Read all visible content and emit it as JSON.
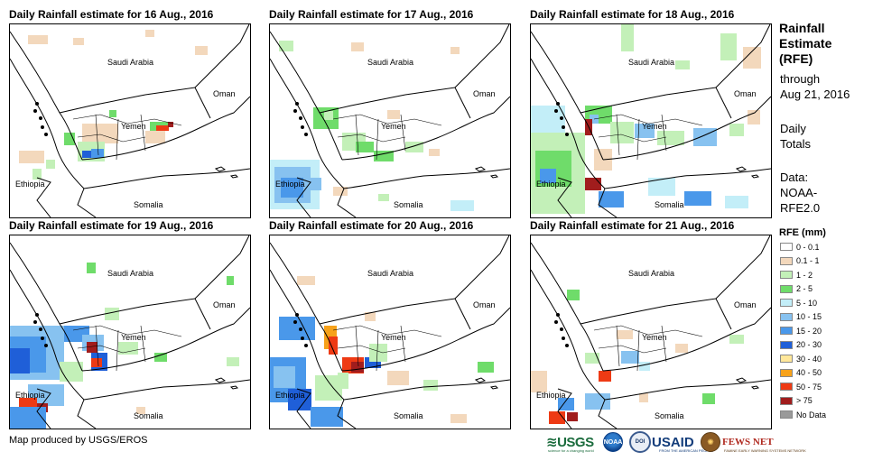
{
  "panels": [
    {
      "title": "Daily Rainfall estimate for 16 Aug., 2016"
    },
    {
      "title": "Daily Rainfall estimate for 17 Aug., 2016"
    },
    {
      "title": "Daily Rainfall estimate for 18 Aug., 2016"
    },
    {
      "title": "Daily Rainfall estimate for 19 Aug., 2016"
    },
    {
      "title": "Daily Rainfall estimate for 20 Aug., 2016"
    },
    {
      "title": "Daily Rainfall estimate for 21 Aug., 2016"
    }
  ],
  "country_labels": {
    "saudi_arabia": "Saudi Arabia",
    "oman": "Oman",
    "yemen": "Yemen",
    "ethiopia": "Ethiopia",
    "somalia": "Somalia"
  },
  "legend": {
    "title_line1": "Rainfall",
    "title_line2": "Estimate",
    "title_line3": "(RFE)",
    "through": "through",
    "date": "Aug 21, 2016",
    "daily": "Daily",
    "totals": "Totals",
    "data_label": "Data:",
    "source_line1": "NOAA-",
    "source_line2": "RFE2.0",
    "unit_label": "RFE (mm)",
    "classes": [
      {
        "label": "0 - 0.1",
        "color": "#ffffff"
      },
      {
        "label": "0.1 - 1",
        "color": "#f3d8bc"
      },
      {
        "label": "1 - 2",
        "color": "#c3f0b8"
      },
      {
        "label": "2 - 5",
        "color": "#6fdc6a"
      },
      {
        "label": "5 - 10",
        "color": "#c3eef8"
      },
      {
        "label": "10 - 15",
        "color": "#87c2f0"
      },
      {
        "label": "15 - 20",
        "color": "#4a98ea"
      },
      {
        "label": "20 - 30",
        "color": "#1f5fd8"
      },
      {
        "label": "30 - 40",
        "color": "#ffe79a"
      },
      {
        "label": "40 - 50",
        "color": "#f7a21a"
      },
      {
        "label": "50 - 75",
        "color": "#ee3a14"
      },
      {
        "label": "> 75",
        "color": "#a11d1d"
      },
      {
        "label": "No Data",
        "color": "#9a9a9a"
      }
    ]
  },
  "credit": "Map produced by USGS/EROS",
  "logos": {
    "usgs": "≋USGS",
    "usgs_tagline": "science for a changing world",
    "noaa": "NOAA",
    "seal": "DOI",
    "usaid": "USAID",
    "usaid_tagline": "FROM THE AMERICAN PEOPLE",
    "fews_emblem": "✺",
    "fews": "FEWS NET",
    "fews_tagline": "FAMINE EARLY WARNING SYSTEMS NETWORK"
  }
}
